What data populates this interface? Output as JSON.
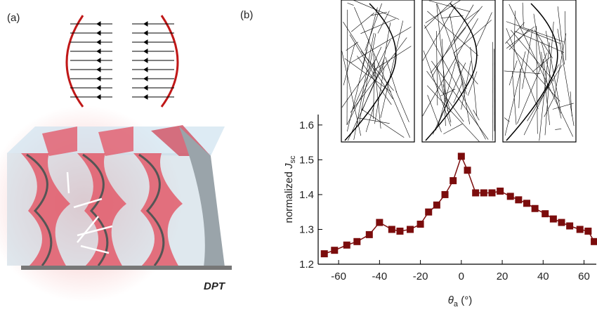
{
  "panel_labels": {
    "a": "(a)",
    "b": "(b)"
  },
  "structure_label": "DPT",
  "chart_data": {
    "type": "line",
    "y_label": {
      "text": "normalized ",
      "symbol": "J",
      "subscript": "sc"
    },
    "x_label": {
      "symbol": "θ",
      "subscript": "a",
      "unit": " (°)"
    },
    "xlim": [
      -70,
      66
    ],
    "ylim": [
      1.2,
      1.63
    ],
    "xticks": [
      -60,
      -40,
      -20,
      0,
      20,
      40,
      60
    ],
    "yticks": [
      1.2,
      1.3,
      1.4,
      1.5,
      1.6
    ],
    "series": [
      {
        "color": "#7b0c0c",
        "x": [
          -67,
          -62,
          -56,
          -51,
          -45,
          -40,
          -34,
          -30,
          -25,
          -20,
          -16,
          -12,
          -8,
          -4,
          0,
          3,
          7,
          11,
          15,
          19,
          24,
          28,
          32,
          36,
          41,
          45,
          49,
          53,
          58,
          62,
          65
        ],
        "values": [
          1.23,
          1.24,
          1.255,
          1.265,
          1.285,
          1.32,
          1.3,
          1.295,
          1.3,
          1.315,
          1.35,
          1.37,
          1.4,
          1.44,
          1.51,
          1.47,
          1.405,
          1.405,
          1.405,
          1.41,
          1.395,
          1.385,
          1.375,
          1.36,
          1.345,
          1.33,
          1.32,
          1.31,
          1.3,
          1.295,
          1.265
        ]
      }
    ]
  }
}
